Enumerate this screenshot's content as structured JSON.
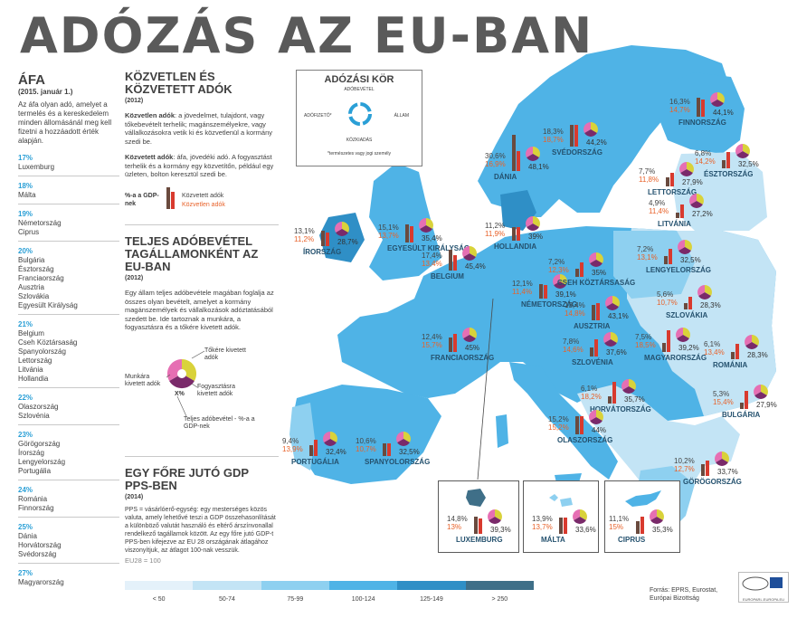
{
  "title": "ADÓZÁS AZ EU-BAN",
  "vat": {
    "heading": "ÁFA",
    "date": "(2015. január 1.)",
    "description": "Az áfa olyan adó, amelyet a termelés és a kereskedelem minden állomásánál meg kell fizetni a hozzáadott érték alapján.",
    "groups": [
      {
        "rate": "17%",
        "countries": [
          "Luxemburg"
        ]
      },
      {
        "rate": "18%",
        "countries": [
          "Málta"
        ]
      },
      {
        "rate": "19%",
        "countries": [
          "Németország",
          "Ciprus"
        ]
      },
      {
        "rate": "20%",
        "countries": [
          "Bulgária",
          "Észtország",
          "Franciaország",
          "Ausztria",
          "Szlovákia",
          "Egyesült Királyság"
        ]
      },
      {
        "rate": "21%",
        "countries": [
          "Belgium",
          "Cseh Köztársaság",
          "Spanyolország",
          "Lettország",
          "Litvánia",
          "Hollandia"
        ]
      },
      {
        "rate": "22%",
        "countries": [
          "Olaszország",
          "Szlovénia"
        ]
      },
      {
        "rate": "23%",
        "countries": [
          "Görögország",
          "Írország",
          "Lengyelország",
          "Portugália"
        ]
      },
      {
        "rate": "24%",
        "countries": [
          "Románia",
          "Finnország"
        ]
      },
      {
        "rate": "25%",
        "countries": [
          "Dánia",
          "Horvátország",
          "Svédország"
        ]
      },
      {
        "rate": "27%",
        "countries": [
          "Magyarország"
        ]
      }
    ]
  },
  "direct": {
    "heading1": "KÖZVETLEN ÉS",
    "heading2": "KÖZVETETT ADÓK",
    "year": "(2012)",
    "p1_bold": "Közvetlen adók",
    "p1": ": a jövedelmet, tulajdont, vagy tőkebevételt terhelik; magánszemélyekre, vagy vállalkozásokra vetik ki és közvetlenül a kormány szedi be.",
    "p2_bold": "Közvetett adók",
    "p2": ": áfa, jövedéki adó. A fogyasztást terhelik és a kormány egy közvetítőn, például egy üzleten, bolton keresztül szedi be.",
    "legend_gdp": "%-a a GDP-nek",
    "legend_indirect": "Közvetett adók",
    "legend_direct": "Közvetlen adók"
  },
  "total": {
    "heading1": "TELJES ADÓBEVÉTEL",
    "heading2": "TAGÁLLAMONKÉNT AZ",
    "heading3": "EU-BAN",
    "year": "(2012)",
    "text": "Egy állam teljes adóbevétele magában foglalja az összes olyan bevételt, amelyet a kormány magánszemélyek és vállalkozások adóztatásából szedett be. Ide tartoznak a munkára, a fogyasztásra és a tőkére kivetett adók.",
    "lbl_capital": "Tőkére kivetett adók",
    "lbl_labour": "Munkára kivetett adók",
    "lbl_consumption": "Fogyasztásra kivetett adók",
    "lbl_x": "X%",
    "lbl_total": "Teljes adóbevétel - %-a a GDP-nek"
  },
  "gdp": {
    "heading1": "EGY FŐRE JUTÓ GDP",
    "heading2": "PPS-BEN",
    "year": "(2014)",
    "text": "PPS = vásárlóerő-egység: egy mesterséges közös valuta, amely lehetővé teszi a GDP összehasonlítását a különböző valutát használó és eltérő árszínvonallal rendelkező tagállamok között. Az egy főre jutó GDP-t PPS-ben kifejezve az EU 28 országának átlagához viszonyítjuk, az átlagot 100-nak vesszük.",
    "eu28": "EU28 = 100",
    "legend": [
      {
        "label": "< 50",
        "color": "#e4f1fa"
      },
      {
        "label": "50-74",
        "color": "#c3e4f5"
      },
      {
        "label": "75-99",
        "color": "#8ed0f0"
      },
      {
        "label": "100-124",
        "color": "#4fb3e6"
      },
      {
        "label": "125-149",
        "color": "#2f8fc6"
      },
      {
        "label": "> 250",
        "color": "#3f6f88"
      }
    ]
  },
  "kor": {
    "title": "ADÓZÁSI KÖR",
    "top": "ADÓBEVÉTEL",
    "left": "ADÓFIZETŐ*",
    "right": "ÁLLAM",
    "bottom": "KÖZKIADÁS",
    "note": "*természetes vagy jogi személy"
  },
  "countries": [
    {
      "name": "FINNORSZÁG",
      "d": "16,3%",
      "i": "14,7%",
      "t": "44,1%"
    },
    {
      "name": "SVÉDORSZÁG",
      "d": "18,3%",
      "i": "18,7%",
      "t": "44,2%"
    },
    {
      "name": "ÉSZTORSZÁG",
      "d": "6,8%",
      "i": "14,2%",
      "t": "32,5%"
    },
    {
      "name": "LETTORSZÁG",
      "d": "7,7%",
      "i": "11,8%",
      "t": "27,9%"
    },
    {
      "name": "LITVÁNIA",
      "d": "4,9%",
      "i": "11,4%",
      "t": "27,2%"
    },
    {
      "name": "DÁNIA",
      "d": "30,6%",
      "i": "16,9%",
      "t": "48,1%"
    },
    {
      "name": "ÍRORSZÁG",
      "d": "13,1%",
      "i": "11,2%",
      "t": "28,7%"
    },
    {
      "name": "EGYESÜLT KIRÁLYSÁG",
      "d": "15,1%",
      "i": "13,7%",
      "t": "35,4%"
    },
    {
      "name": "HOLLANDIA",
      "d": "11,2%",
      "i": "11,9%",
      "t": "39%"
    },
    {
      "name": "BELGIUM",
      "d": "17,4%",
      "i": "13,4%",
      "t": "45,4%"
    },
    {
      "name": "NÉMETORSZÁG",
      "d": "12,1%",
      "i": "11,4%",
      "t": "39,1%"
    },
    {
      "name": "LENGYELORSZÁG",
      "d": "7,2%",
      "i": "13,1%",
      "t": "32,5%"
    },
    {
      "name": "CSEH KÖZTÁRSASÁG",
      "d": "7,2%",
      "i": "12,3%",
      "t": "35%"
    },
    {
      "name": "SZLOVÁKIA",
      "d": "5,6%",
      "i": "10,7%",
      "t": "28,3%"
    },
    {
      "name": "AUSZTRIA",
      "d": "13,4%",
      "i": "14,8%",
      "t": "43,1%"
    },
    {
      "name": "FRANCIAORSZÁG",
      "d": "12,4%",
      "i": "15,7%",
      "t": "45%"
    },
    {
      "name": "SZLOVÉNIA",
      "d": "7,8%",
      "i": "14,6%",
      "t": "37,6%"
    },
    {
      "name": "MAGYARORSZÁG",
      "d": "7,5%",
      "i": "18,5%",
      "t": "39,2%"
    },
    {
      "name": "ROMÁNIA",
      "d": "6,1%",
      "i": "13,4%",
      "t": "28,3%"
    },
    {
      "name": "HORVÁTORSZÁG",
      "d": "6,1%",
      "i": "18,2%",
      "t": "35,7%"
    },
    {
      "name": "BULGÁRIA",
      "d": "5,3%",
      "i": "15,4%",
      "t": "27,9%"
    },
    {
      "name": "OLASZORSZÁG",
      "d": "15,2%",
      "i": "15,2%",
      "t": "44%"
    },
    {
      "name": "PORTUGÁLIA",
      "d": "9,4%",
      "i": "13,9%",
      "t": "32,4%"
    },
    {
      "name": "SPANYOLORSZÁG",
      "d": "10,6%",
      "i": "10,7%",
      "t": "32,5%"
    },
    {
      "name": "GÖRÖGORSZÁG",
      "d": "10,2%",
      "i": "12,7%",
      "t": "33,7%"
    },
    {
      "name": "LUXEMBURG",
      "d": "14,8%",
      "i": "13%",
      "t": "39,3%"
    },
    {
      "name": "MÁLTA",
      "d": "13,9%",
      "i": "13,7%",
      "t": "33,6%"
    },
    {
      "name": "CIPRUS",
      "d": "11,1%",
      "i": "15%",
      "t": "35,3%"
    }
  ],
  "source": {
    "line1": "Forrás: EPRS, Eurostat,",
    "line2": "Európai Bizottság"
  },
  "ep_logo_text": "EUROPARL.EUROPA.EU",
  "colors": {
    "indirect": "#6a4a3e",
    "direct": "#d83a2e",
    "pie_capital": "#7a2a6a",
    "pie_labour": "#e66fb3",
    "pie_consumption": "#d9d23a"
  }
}
